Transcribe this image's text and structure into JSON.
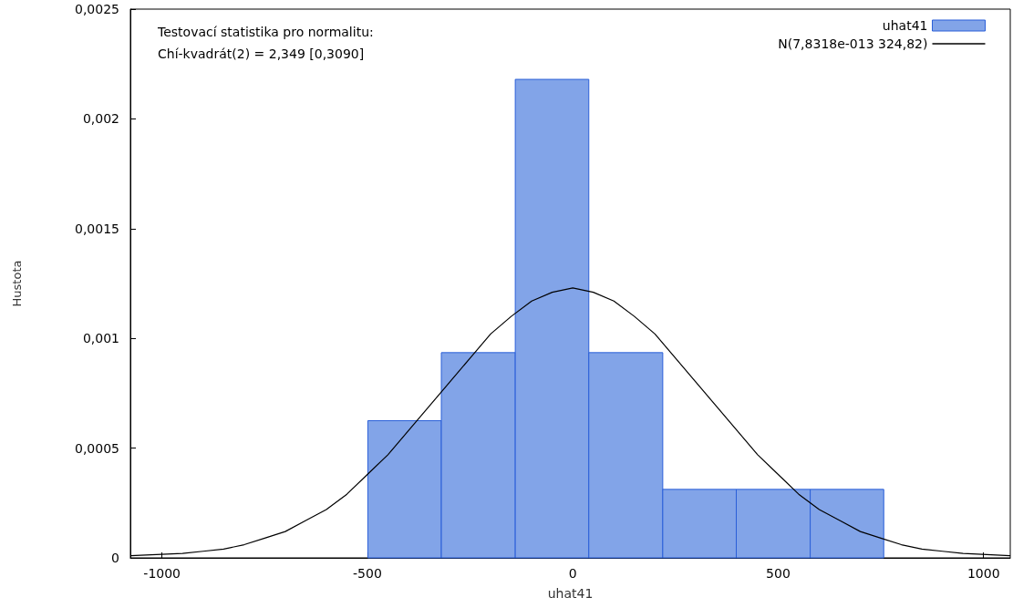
{
  "chart_data": {
    "type": "histogram",
    "xlabel": "uhat41",
    "ylabel": "Hustota",
    "annotations": [
      "Testovací statistika pro normalitu:",
      "Chí-kvadrát(2) = 2,349 [0,3090]"
    ],
    "series": [
      {
        "type": "histogram",
        "name": "uhat41",
        "color": "#82a4e8",
        "bins": [
          -499,
          -320,
          -140,
          39,
          219,
          398,
          578,
          757
        ],
        "values": [
          0.000625,
          0.000935,
          0.00218,
          0.000935,
          0.000312,
          0.000312,
          0.000312
        ]
      },
      {
        "type": "line",
        "name": "N(7,8318e-013 324,82)",
        "color": "#000000",
        "x": [
          -1077,
          -950,
          -900,
          -850,
          -800,
          -750,
          -700,
          -650,
          -600,
          -550,
          -500,
          -450,
          -400,
          -350,
          -300,
          -250,
          -200,
          -150,
          -100,
          -50,
          0,
          50,
          100,
          150,
          200,
          250,
          300,
          350,
          400,
          450,
          500,
          550,
          600,
          650,
          700,
          750,
          800,
          850,
          900,
          950,
          1065
        ],
        "values": [
          1e-05,
          2e-05,
          3e-05,
          4e-05,
          6e-05,
          9e-05,
          0.00012,
          0.00017,
          0.00022,
          0.00029,
          0.00038,
          0.00047,
          0.00058,
          0.00069,
          0.0008,
          0.00091,
          0.00102,
          0.0011,
          0.00117,
          0.00121,
          0.00123,
          0.00121,
          0.00117,
          0.0011,
          0.00102,
          0.00091,
          0.0008,
          0.00069,
          0.00058,
          0.00047,
          0.00038,
          0.00029,
          0.00022,
          0.00017,
          0.00012,
          9e-05,
          6e-05,
          4e-05,
          3e-05,
          2e-05,
          1e-05
        ]
      }
    ],
    "xlim": [
      -1077,
      1065
    ],
    "xticks": [
      -1000,
      -500,
      0,
      500,
      1000
    ],
    "ylim": [
      0,
      0.0025
    ],
    "yticks": [
      0,
      {
        "value": 0.0005,
        "label": "0,0005"
      },
      {
        "value": 0.001,
        "label": "0,001"
      },
      {
        "value": 0.0015,
        "label": "0,0015"
      },
      {
        "value": 0.002,
        "label": "0,002"
      },
      {
        "value": 0.0025,
        "label": "0,0025"
      }
    ],
    "grid": false,
    "legend": "top right",
    "marker": "none",
    "line_style": "solid"
  }
}
